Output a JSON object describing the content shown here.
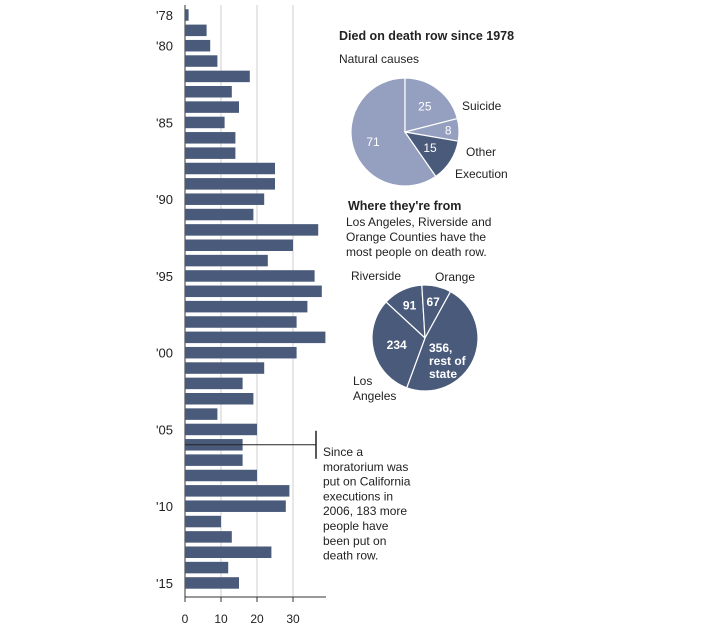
{
  "colors": {
    "bar": "#4a5a7a",
    "grid": "#cfcfcf",
    "pie_dark": "#4a5a7a",
    "pie_light": "#95a0c0",
    "pie_line": "#ffffff",
    "text": "#222222"
  },
  "chart_data": [
    {
      "type": "bar",
      "orientation": "horizontal",
      "categories": [
        "1978",
        "1979",
        "1980",
        "1981",
        "1982",
        "1983",
        "1984",
        "1985",
        "1986",
        "1987",
        "1988",
        "1989",
        "1990",
        "1991",
        "1992",
        "1993",
        "1994",
        "1995",
        "1996",
        "1997",
        "1998",
        "1999",
        "2000",
        "2001",
        "2002",
        "2003",
        "2004",
        "2005",
        "2006",
        "2007",
        "2008",
        "2009",
        "2010",
        "2011",
        "2012",
        "2013",
        "2014",
        "2015"
      ],
      "values": [
        1,
        6,
        7,
        9,
        18,
        13,
        15,
        11,
        14,
        14,
        25,
        25,
        22,
        19,
        37,
        30,
        23,
        36,
        38,
        34,
        31,
        39,
        31,
        22,
        16,
        19,
        9,
        20,
        16,
        16,
        20,
        29,
        28,
        10,
        13,
        24,
        12,
        15
      ],
      "tick_labels": [
        {
          "category": "1978",
          "label": "'78"
        },
        {
          "category": "1980",
          "label": "'80"
        },
        {
          "category": "1985",
          "label": "'85"
        },
        {
          "category": "1990",
          "label": "'90"
        },
        {
          "category": "1995",
          "label": "'95"
        },
        {
          "category": "2000",
          "label": "'00"
        },
        {
          "category": "2005",
          "label": "'05"
        },
        {
          "category": "2010",
          "label": "'10"
        },
        {
          "category": "2015",
          "label": "'15"
        }
      ],
      "xlim": [
        0,
        40
      ],
      "xticks": [
        0,
        10,
        20,
        30
      ],
      "grid": true,
      "annotation": {
        "category": "2006",
        "text_lines": [
          "Since a",
          "moratorium was",
          "put on California",
          "executions in",
          "2006, 183 more",
          "people have",
          "been put on",
          "death row."
        ]
      }
    },
    {
      "type": "pie",
      "title": "Died on death row since 1978",
      "slices": [
        {
          "label": "Natural causes",
          "value": 71,
          "value_label": "71"
        },
        {
          "label": "Suicide",
          "value": 25,
          "value_label": "25"
        },
        {
          "label": "Other",
          "value": 8,
          "value_label": "8"
        },
        {
          "label": "Execution",
          "value": 15,
          "value_label": "15"
        }
      ]
    },
    {
      "type": "pie",
      "title": "Where they're from",
      "subtitle_lines": [
        "Los Angeles, Riverside and",
        "Orange Counties have the",
        "most people on death row."
      ],
      "slices": [
        {
          "label": "Riverside",
          "value": 91,
          "value_label": "91"
        },
        {
          "label": "Orange",
          "value": 67,
          "value_label": "67"
        },
        {
          "label": "rest of state",
          "value": 356,
          "value_label_lines": [
            "356,",
            "rest of",
            "state"
          ]
        },
        {
          "label": "Los Angeles",
          "value": 234,
          "value_label": "234",
          "label_lines": [
            "Los",
            "Angeles"
          ]
        }
      ]
    }
  ]
}
